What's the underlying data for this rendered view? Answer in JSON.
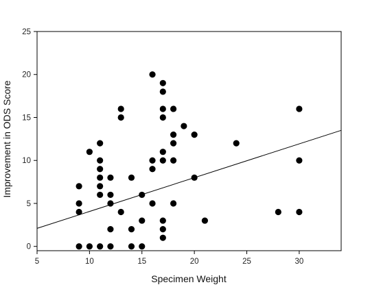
{
  "chart_data": {
    "type": "scatter",
    "title": "",
    "xlabel": "Specimen Weight",
    "ylabel": "Improvement in ODS Score",
    "xlim": [
      5,
      34
    ],
    "ylim": [
      -0.5,
      25
    ],
    "x_ticks": [
      5,
      10,
      15,
      20,
      25,
      30
    ],
    "y_ticks": [
      0,
      5,
      10,
      15,
      20,
      25
    ],
    "grid": false,
    "legend": "none",
    "point_color": "#000000",
    "series": [
      {
        "points": [
          [
            9,
            0
          ],
          [
            9,
            4
          ],
          [
            9,
            5
          ],
          [
            9,
            7
          ],
          [
            10,
            0
          ],
          [
            10,
            11
          ],
          [
            11,
            0
          ],
          [
            11,
            6
          ],
          [
            11,
            7
          ],
          [
            11,
            8
          ],
          [
            11,
            9
          ],
          [
            11,
            10
          ],
          [
            11,
            12
          ],
          [
            12,
            0
          ],
          [
            12,
            2
          ],
          [
            12,
            5
          ],
          [
            12,
            6
          ],
          [
            12,
            8
          ],
          [
            13,
            4
          ],
          [
            13,
            15
          ],
          [
            13,
            16
          ],
          [
            14,
            0
          ],
          [
            14,
            2
          ],
          [
            14,
            8
          ],
          [
            15,
            0
          ],
          [
            15,
            3
          ],
          [
            15,
            6
          ],
          [
            16,
            5
          ],
          [
            16,
            9
          ],
          [
            16,
            10
          ],
          [
            16,
            20
          ],
          [
            17,
            1
          ],
          [
            17,
            2
          ],
          [
            17,
            3
          ],
          [
            17,
            10
          ],
          [
            17,
            11
          ],
          [
            17,
            15
          ],
          [
            17,
            16
          ],
          [
            17,
            18
          ],
          [
            17,
            19
          ],
          [
            18,
            5
          ],
          [
            18,
            10
          ],
          [
            18,
            12
          ],
          [
            18,
            13
          ],
          [
            18,
            16
          ],
          [
            19,
            14
          ],
          [
            20,
            8
          ],
          [
            20,
            13
          ],
          [
            21,
            3
          ],
          [
            24,
            12
          ],
          [
            28,
            4
          ],
          [
            30,
            4
          ],
          [
            30,
            10
          ],
          [
            30,
            16
          ]
        ]
      }
    ],
    "trendline": {
      "x": [
        5,
        34
      ],
      "y": [
        2.1,
        13.5
      ],
      "color": "#000000"
    }
  }
}
